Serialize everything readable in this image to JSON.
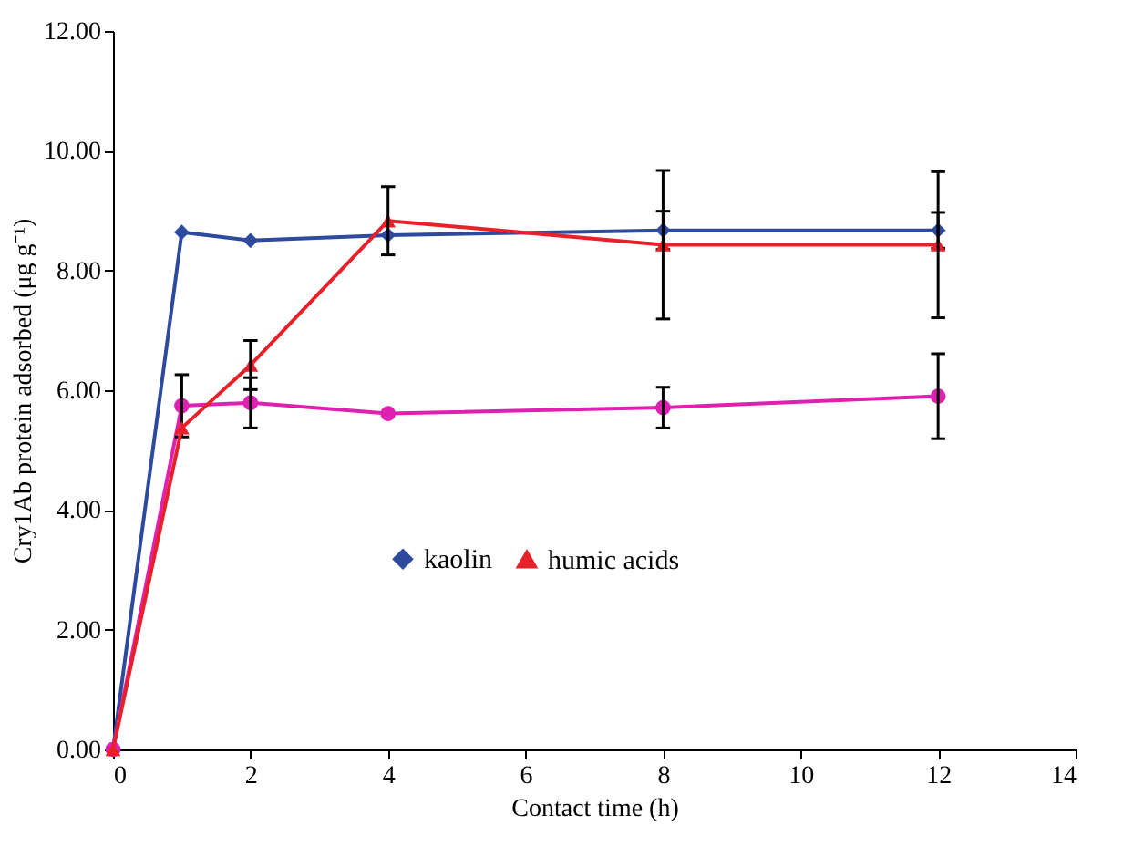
{
  "chart_data": {
    "type": "line",
    "xlabel": "Contact time (h)",
    "ylabel": "Cry1Ab protein adsorbed (μg g⁻¹)",
    "x": [
      0,
      1,
      2,
      4,
      8,
      12
    ],
    "series": [
      {
        "name": "kaolin",
        "color": "#2e4a9e",
        "marker": "diamond",
        "values": [
          0,
          8.64,
          8.5,
          8.59,
          8.67,
          8.67
        ],
        "errors": [
          null,
          null,
          null,
          null,
          0.32,
          0.3
        ]
      },
      {
        "color": "#e020b0",
        "marker": "circle",
        "values": [
          0,
          5.74,
          5.79,
          5.61,
          5.71,
          5.9
        ],
        "errors": [
          null,
          0.52,
          0.42,
          null,
          0.34,
          0.71
        ]
      },
      {
        "name": "humic acids",
        "color": "#e8202a",
        "marker": "triangle",
        "values": [
          0,
          5.37,
          6.42,
          8.83,
          8.43,
          8.43
        ],
        "errors": [
          null,
          null,
          0.41,
          0.57,
          1.24,
          1.22
        ]
      }
    ],
    "xlim": [
      0,
      14
    ],
    "xticks": [
      0,
      2,
      4,
      6,
      8,
      10,
      12,
      14
    ],
    "ylim": [
      0,
      12
    ],
    "yticks": [
      {
        "value": 0,
        "label": "0.00"
      },
      {
        "value": 2,
        "label": "2.00"
      },
      {
        "value": 4,
        "label": "4.00"
      },
      {
        "value": 6,
        "label": "6.00"
      },
      {
        "value": 8,
        "label": "8.00"
      },
      {
        "value": 10,
        "label": "10.00"
      },
      {
        "value": 12,
        "label": "12.00"
      }
    ],
    "grid": false,
    "legend": "bottom",
    "line_style": "solid"
  }
}
